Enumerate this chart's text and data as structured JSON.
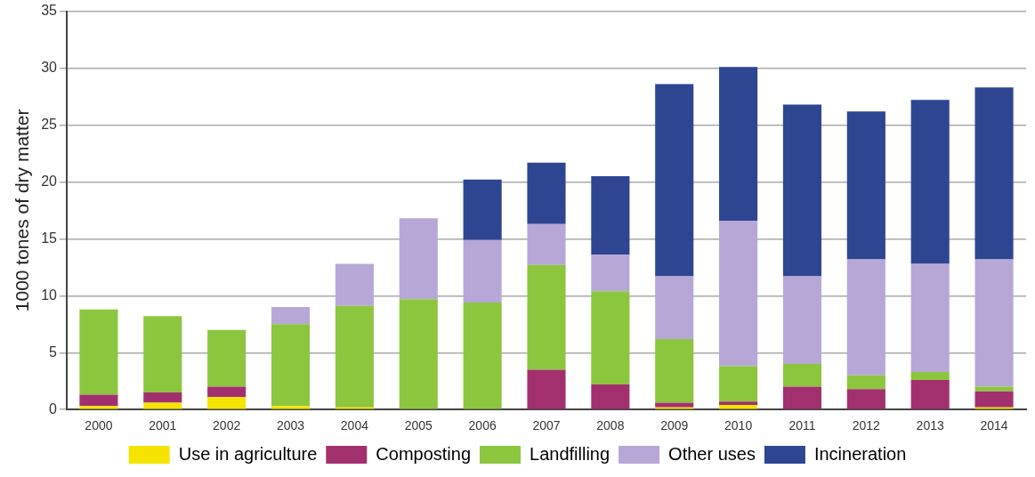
{
  "chart_data": {
    "type": "bar",
    "stacked": true,
    "ylabel": "1000 tones of dry matter",
    "categories": [
      "2000",
      "2001",
      "2002",
      "2003",
      "2004",
      "2005",
      "2006",
      "2007",
      "2008",
      "2009",
      "2010",
      "2011",
      "2012",
      "2013",
      "2014"
    ],
    "series": [
      {
        "name": "Use in agriculture",
        "color": "#f5e400",
        "values": [
          0.3,
          0.6,
          1.1,
          0.3,
          0.2,
          null,
          0,
          0,
          0,
          0.2,
          0.4,
          0,
          0,
          0,
          0.2
        ]
      },
      {
        "name": "Composting",
        "color": "#a3306e",
        "values": [
          1.0,
          0.9,
          0.9,
          0,
          0,
          0,
          0,
          3.5,
          2.2,
          0.4,
          0.3,
          2.0,
          1.8,
          2.6,
          1.4
        ]
      },
      {
        "name": "Landfilling",
        "color": "#8cc63e",
        "values": [
          7.5,
          6.7,
          5.0,
          7.2,
          8.9,
          9.7,
          9.4,
          9.2,
          8.2,
          5.6,
          3.1,
          2.0,
          1.2,
          0.7,
          0.4
        ]
      },
      {
        "name": "Other uses",
        "color": "#b7a7d6",
        "values": [
          0,
          0,
          0,
          1.5,
          3.7,
          7.1,
          5.5,
          3.6,
          3.2,
          5.5,
          12.8,
          7.7,
          10.2,
          9.5,
          11.2
        ]
      },
      {
        "name": "Incineration",
        "color": "#2e4592",
        "values": [
          0,
          0,
          0,
          0,
          0,
          0,
          5.3,
          5.4,
          6.9,
          16.9,
          13.5,
          15.1,
          13.0,
          14.4,
          15.1
        ]
      }
    ],
    "ylim": [
      0,
      35
    ],
    "yticks": [
      0,
      5,
      10,
      15,
      20,
      25,
      30,
      35
    ],
    "grid": "y",
    "legend": "bottom"
  }
}
